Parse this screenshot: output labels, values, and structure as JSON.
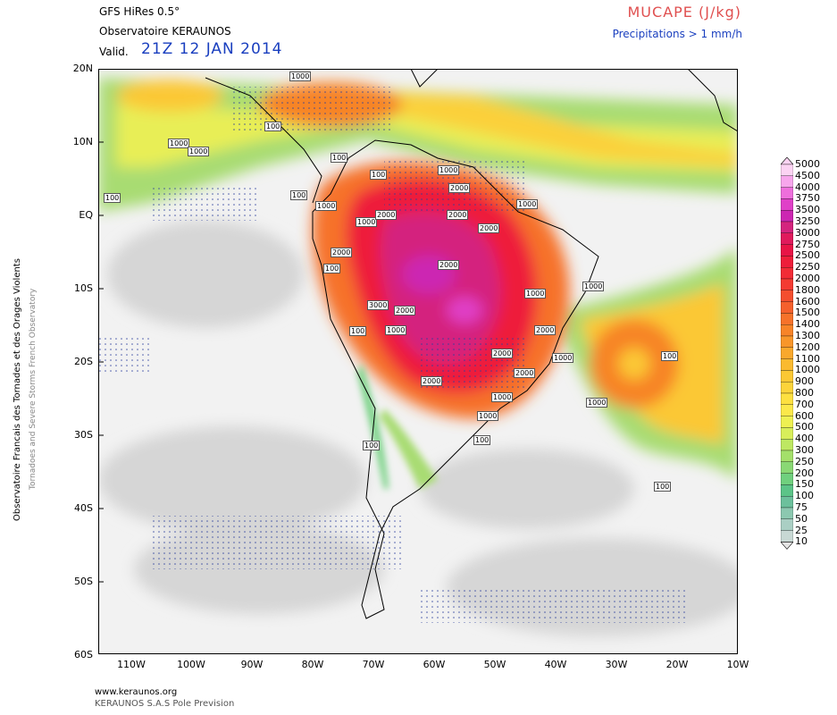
{
  "header": {
    "model": "GFS HiRes 0.5°",
    "org": "Observatoire KERAUNOS",
    "valid_prefix": "Valid.",
    "valid_time": "21Z 12 JAN 2014",
    "product": "MUCAPE (J/kg)",
    "subproduct": "Precipitations > 1 mm/h"
  },
  "side_labels": {
    "line1": "Observatoire Francais des Tornades et des Orages Violents",
    "line2": "Tornadoes and Severe Storms French Observatory"
  },
  "axes": {
    "lat_labels": [
      "20N",
      "10N",
      "EQ",
      "10S",
      "20S",
      "30S",
      "40S",
      "50S",
      "60S"
    ],
    "lon_labels": [
      "110W",
      "100W",
      "90W",
      "80W",
      "70W",
      "60W",
      "50W",
      "40W",
      "30W",
      "20W",
      "10W"
    ]
  },
  "colorbar": {
    "levels": [
      "5000",
      "4500",
      "4000",
      "3750",
      "3500",
      "3250",
      "3000",
      "2750",
      "2500",
      "2250",
      "2000",
      "1800",
      "1600",
      "1500",
      "1400",
      "1300",
      "1200",
      "1100",
      "1000",
      "900",
      "800",
      "700",
      "600",
      "500",
      "400",
      "300",
      "250",
      "200",
      "150",
      "100",
      "75",
      "50",
      "25",
      "10"
    ],
    "colors": [
      "#fbd3f3",
      "#f7a6ec",
      "#ee6fdc",
      "#e040c8",
      "#cc26b2",
      "#d4247e",
      "#e01a5c",
      "#e81446",
      "#ee1e3a",
      "#f22c36",
      "#f43a32",
      "#f44e2e",
      "#f5602c",
      "#f6722a",
      "#f78428",
      "#f8962a",
      "#f9a82c",
      "#faba30",
      "#fbc834",
      "#fcd43a",
      "#fde040",
      "#fbe84a",
      "#eef052",
      "#d8ee5a",
      "#bee862",
      "#a4e06a",
      "#8ad874",
      "#70d07e",
      "#5cc488",
      "#6cc09c",
      "#8cc8b0",
      "#aacfc4",
      "#c8d8d4",
      "#e4e4e4"
    ]
  },
  "contour_labels": [
    "1000",
    "1000",
    "100",
    "100",
    "1000",
    "100",
    "1000",
    "2000",
    "100",
    "1000",
    "1000",
    "2000",
    "2000",
    "2000",
    "2000",
    "1000",
    "100",
    "2000",
    "1000",
    "3000",
    "2000",
    "1000",
    "100",
    "1000",
    "2000",
    "2000",
    "1000",
    "100",
    "2000",
    "1000",
    "1000",
    "2000",
    "1000",
    "100",
    "100",
    "100",
    "100"
  ],
  "colors": {
    "valid_time": "#1a3fbf",
    "product": "#e05050",
    "subproduct": "#1a3fbf"
  },
  "footer": {
    "url": "www.keraunos.org",
    "company": "KERAUNOS S.A.S Pole Prevision"
  }
}
